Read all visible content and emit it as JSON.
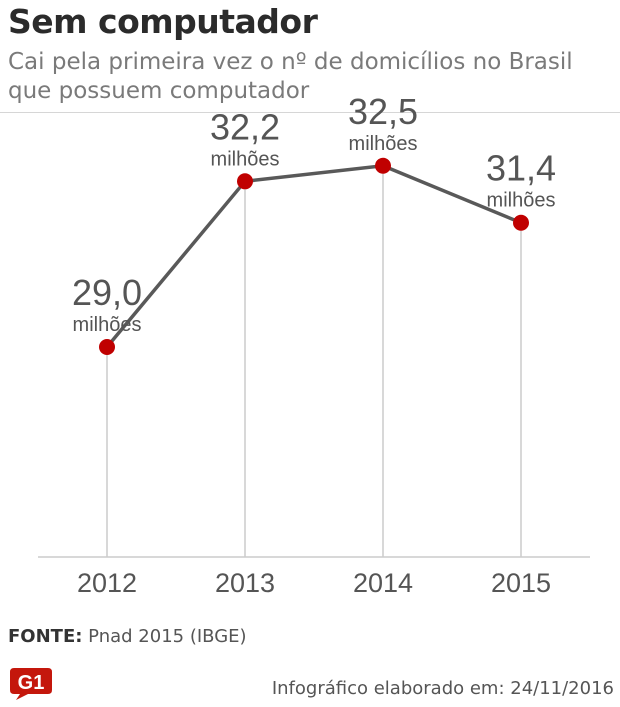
{
  "header": {
    "title": "Sem computador",
    "subtitle": "Cai pela primeira vez o nº de domicílios no Brasil que possuem computador"
  },
  "chart_data": {
    "type": "line",
    "x": [
      "2012",
      "2013",
      "2014",
      "2015"
    ],
    "values": [
      29.0,
      32.2,
      32.5,
      31.4
    ],
    "value_labels": [
      "29,0",
      "32,2",
      "32,5",
      "31,4"
    ],
    "unit_label": "milhões",
    "ylim": [
      24.5,
      33.5
    ],
    "grid": "vertical drop lines",
    "colors": {
      "line": "#595959",
      "marker": "#c00000",
      "baseline": "#cccccc"
    }
  },
  "footer": {
    "source_label": "FONTE:",
    "source_text": "Pnad 2015 (IBGE)",
    "credit": "Infográfico elaborado em: 24/11/2016",
    "logo_text": "G1",
    "logo_color": "#c4170c"
  }
}
